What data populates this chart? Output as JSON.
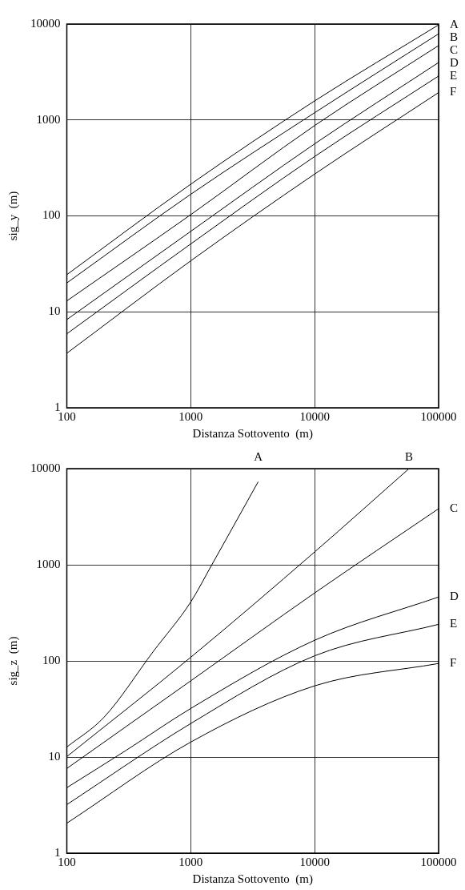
{
  "chart_data": [
    {
      "type": "line",
      "xlabel": "Distanza Sottovento  (m)",
      "ylabel": "sig_y  (m)",
      "log": "xy",
      "grid": true,
      "marker": "none",
      "line_style": "solid",
      "xlim": [
        100,
        100000
      ],
      "ylim": [
        1,
        10000
      ],
      "xticks": [
        100,
        1000,
        10000,
        100000
      ],
      "yticks": [
        1,
        10,
        100,
        1000,
        10000
      ],
      "series": [
        {
          "name": "A",
          "color": "#000000",
          "x": [
            100,
            1000,
            10000,
            100000
          ],
          "values": [
            24.4,
            214,
            1580,
            9800
          ]
        },
        {
          "name": "B",
          "color": "#000000",
          "x": [
            100,
            1000,
            10000,
            100000
          ],
          "values": [
            20,
            168,
            1190,
            7900
          ]
        },
        {
          "name": "C",
          "color": "#000000",
          "x": [
            100,
            1000,
            10000,
            100000
          ],
          "values": [
            13,
            103,
            875,
            5960
          ]
        },
        {
          "name": "D",
          "color": "#000000",
          "x": [
            100,
            1000,
            10000,
            100000
          ],
          "values": [
            8.3,
            69,
            564,
            3970
          ]
        },
        {
          "name": "E",
          "color": "#000000",
          "x": [
            100,
            1000,
            10000,
            100000
          ],
          "values": [
            5.9,
            51,
            416,
            2870
          ]
        },
        {
          "name": "F",
          "color": "#000000",
          "x": [
            100,
            1000,
            10000,
            100000
          ],
          "values": [
            3.7,
            34,
            273,
            1930
          ]
        }
      ]
    },
    {
      "type": "line",
      "xlabel": "Distanza Sottovento  (m)",
      "ylabel": "sig_z  (m)",
      "log": "xy",
      "grid": true,
      "marker": "none",
      "line_style": "solid",
      "xlim": [
        100,
        100000
      ],
      "ylim": [
        1,
        10000
      ],
      "xticks": [
        100,
        1000,
        10000,
        100000
      ],
      "yticks": [
        1,
        10,
        100,
        1000,
        10000
      ],
      "series": [
        {
          "name": "A",
          "color": "#000000",
          "x": [
            100,
            200,
            500,
            1000,
            1480,
            2000,
            3500
          ],
          "values": [
            12.7,
            26,
            126,
            410,
            1000,
            2000,
            7300
          ]
        },
        {
          "name": "B",
          "color": "#000000",
          "x": [
            100,
            1000,
            10000,
            57700
          ],
          "values": [
            10.1,
            109,
            1360,
            10000
          ]
        },
        {
          "name": "C",
          "color": "#000000",
          "x": [
            100,
            1000,
            10000,
            100000
          ],
          "values": [
            7.6,
            62,
            509,
            3830
          ]
        },
        {
          "name": "D",
          "color": "#000000",
          "x": [
            100,
            300,
            1000,
            10000,
            100000
          ],
          "values": [
            4.8,
            11.7,
            32,
            164,
            462
          ]
        },
        {
          "name": "E",
          "color": "#000000",
          "x": [
            100,
            1000,
            10000,
            100000
          ],
          "values": [
            3.2,
            22.3,
            113,
            240
          ]
        },
        {
          "name": "F",
          "color": "#000000",
          "x": [
            100,
            1000,
            10000,
            100000
          ],
          "values": [
            2.05,
            14.3,
            55,
            94
          ]
        }
      ]
    }
  ]
}
